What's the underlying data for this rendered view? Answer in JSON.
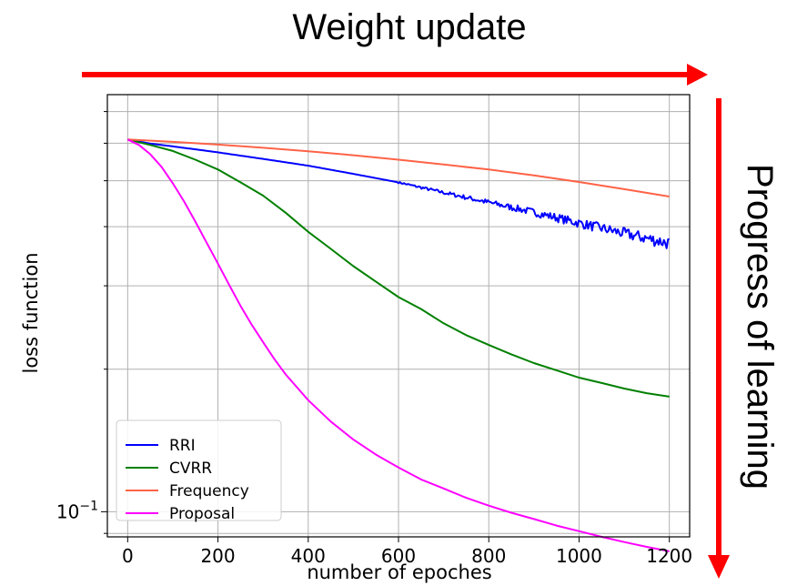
{
  "header": {
    "title": "Weight update"
  },
  "side_label": "Progress of learning",
  "arrow_color": "#ff0000",
  "chart_data": {
    "type": "line",
    "xlabel": "number of epoches",
    "ylabel": "loss function",
    "yscale": "log",
    "grid": true,
    "legend_position": "lower-left",
    "xlim": [
      -45,
      1245
    ],
    "ylim": [
      0.0885,
      0.76
    ],
    "xticks": [
      "0",
      "200",
      "400",
      "600",
      "800",
      "1000",
      "1200"
    ],
    "yticks": [
      {
        "value": 0.1,
        "label": "10^-1"
      }
    ],
    "series": [
      {
        "name": "RRI",
        "color": "#0000ff",
        "x": [
          0,
          50,
          100,
          200,
          300,
          400,
          500,
          600,
          700,
          800,
          900,
          1000,
          1100,
          1200
        ],
        "y": [
          0.611,
          0.599,
          0.591,
          0.574,
          0.556,
          0.538,
          0.517,
          0.496,
          0.472,
          0.45,
          0.429,
          0.407,
          0.387,
          0.369
        ],
        "noise_from_x": 600
      },
      {
        "name": "CVRR",
        "color": "#008000",
        "x": [
          0,
          50,
          100,
          150,
          200,
          250,
          300,
          350,
          400,
          450,
          500,
          550,
          600,
          650,
          700,
          750,
          800,
          850,
          900,
          950,
          1000,
          1050,
          1100,
          1150,
          1200
        ],
        "y": [
          0.611,
          0.595,
          0.578,
          0.554,
          0.528,
          0.496,
          0.465,
          0.428,
          0.39,
          0.359,
          0.33,
          0.306,
          0.284,
          0.268,
          0.25,
          0.236,
          0.225,
          0.215,
          0.206,
          0.199,
          0.192,
          0.187,
          0.182,
          0.178,
          0.175
        ]
      },
      {
        "name": "Frequency",
        "color": "#ff6347",
        "x": [
          0,
          100,
          200,
          300,
          400,
          500,
          600,
          700,
          800,
          900,
          1000,
          1100,
          1200
        ],
        "y": [
          0.611,
          0.604,
          0.596,
          0.587,
          0.577,
          0.566,
          0.554,
          0.541,
          0.528,
          0.513,
          0.497,
          0.48,
          0.463
        ]
      },
      {
        "name": "Proposal",
        "color": "#ff00ff",
        "x": [
          0,
          25,
          50,
          75,
          100,
          125,
          150,
          175,
          200,
          225,
          250,
          275,
          300,
          325,
          350,
          400,
          450,
          500,
          550,
          600,
          650,
          700,
          750,
          800,
          850,
          900,
          950,
          1000,
          1050,
          1100,
          1150,
          1200
        ],
        "y": [
          0.611,
          0.595,
          0.569,
          0.535,
          0.494,
          0.452,
          0.41,
          0.37,
          0.334,
          0.301,
          0.272,
          0.248,
          0.228,
          0.21,
          0.195,
          0.172,
          0.155,
          0.142,
          0.132,
          0.124,
          0.117,
          0.112,
          0.107,
          0.103,
          0.0995,
          0.0965,
          0.0935,
          0.091,
          0.0885,
          0.0863,
          0.0843,
          0.0825
        ]
      }
    ]
  }
}
